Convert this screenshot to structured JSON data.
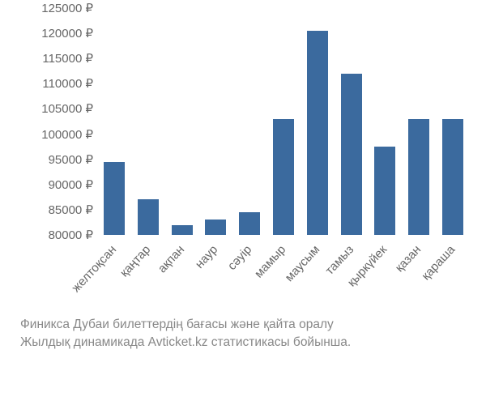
{
  "chart": {
    "type": "bar",
    "y_min": 80000,
    "y_max": 125000,
    "y_tick_step": 5000,
    "y_ticks": [
      80000,
      85000,
      90000,
      95000,
      100000,
      105000,
      110000,
      115000,
      120000,
      125000
    ],
    "y_tick_labels": [
      "80000 ₽",
      "85000 ₽",
      "90000 ₽",
      "95000 ₽",
      "100000 ₽",
      "105000 ₽",
      "110000 ₽",
      "115000 ₽",
      "120000 ₽",
      "125000 ₽"
    ],
    "categories": [
      "желтоқсан",
      "қаңтар",
      "ақпан",
      "наур",
      "сәуір",
      "мамыр",
      "маусым",
      "тамыз",
      "қыркүйек",
      "қазан",
      "қараша"
    ],
    "values": [
      94500,
      87000,
      82000,
      83000,
      84500,
      103000,
      120500,
      112000,
      97500,
      103000,
      103000
    ],
    "bar_color": "#3b6a9e",
    "bar_width_ratio": 0.62,
    "axis_text_color": "#666666",
    "caption_color": "#888888",
    "background_color": "#ffffff",
    "axis_fontsize": 15,
    "caption_fontsize": 15.5,
    "x_label_rotation": -47
  },
  "caption": {
    "line1": "Финикса Дубаи билеттердің бағасы және қайта оралу",
    "line2": "Жылдық динамикада Avticket.kz статистикасы бойынша."
  }
}
